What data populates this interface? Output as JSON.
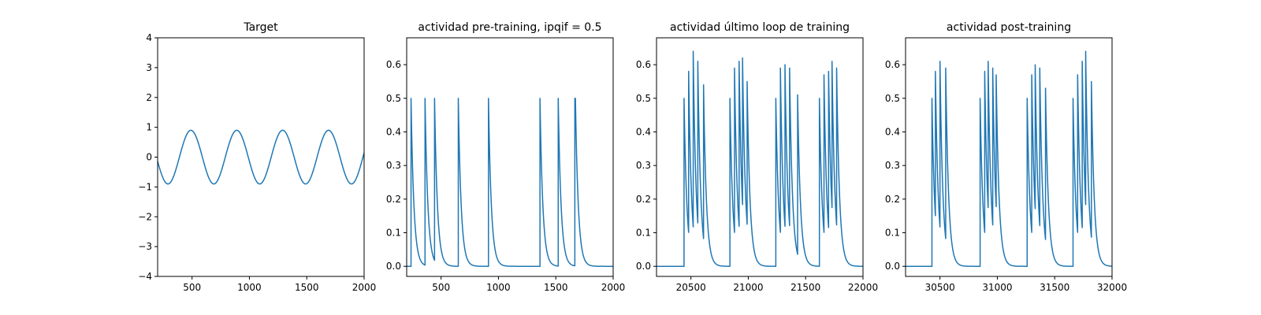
{
  "colors": {
    "series": "#1f77b4",
    "axis": "#000000",
    "background": "#ffffff"
  },
  "chart_data": [
    {
      "type": "line",
      "title": "Target",
      "xlabel": "",
      "ylabel": "",
      "xlim": [
        200,
        2000
      ],
      "ylim": [
        -4,
        4
      ],
      "xticks": [
        500,
        1000,
        1500,
        2000
      ],
      "yticks": [
        -4,
        -3,
        -2,
        -1,
        0,
        1,
        2,
        3,
        4
      ],
      "grid": false,
      "series": [
        {
          "kind": "sine",
          "amplitude": 0.9,
          "period": 400,
          "peaks_at": [
            490,
            890,
            1290,
            1690
          ],
          "troughs_at": [
            290,
            690,
            1090,
            1490,
            1890
          ]
        }
      ]
    },
    {
      "type": "line",
      "title": "actividad pre-training, ipqif = 0.5",
      "xlabel": "",
      "ylabel": "",
      "xlim": [
        200,
        2000
      ],
      "ylim": [
        -0.03,
        0.68
      ],
      "xticks": [
        500,
        1000,
        1500,
        2000
      ],
      "yticks": [
        0.0,
        0.1,
        0.2,
        0.3,
        0.4,
        0.5,
        0.6
      ],
      "grid": false,
      "series": [
        {
          "kind": "spikes",
          "decay": 25,
          "spikes": [
            [
              238,
              0.5
            ],
            [
              360,
              0.5
            ],
            [
              443,
              0.5
            ],
            [
              650,
              0.5
            ],
            [
              913,
              0.5
            ],
            [
              1362,
              0.5
            ],
            [
              1521,
              0.5
            ],
            [
              1666,
              0.5
            ],
            [
              1671,
              0.5
            ]
          ]
        }
      ]
    },
    {
      "type": "line",
      "title": "actividad último loop de training",
      "xlabel": "",
      "ylabel": "",
      "xlim": [
        20200,
        22000
      ],
      "ylim": [
        -0.03,
        0.68
      ],
      "xticks": [
        20500,
        21000,
        21500,
        22000
      ],
      "yticks": [
        0.0,
        0.1,
        0.2,
        0.3,
        0.4,
        0.5,
        0.6
      ],
      "grid": false,
      "series": [
        {
          "kind": "spikes",
          "decay": 25,
          "spikes": [
            [
              20440,
              0.5
            ],
            [
              20480,
              0.58
            ],
            [
              20520,
              0.64
            ],
            [
              20560,
              0.61
            ],
            [
              20610,
              0.54
            ],
            [
              20840,
              0.5
            ],
            [
              20880,
              0.59
            ],
            [
              20920,
              0.61
            ],
            [
              20950,
              0.62
            ],
            [
              20990,
              0.55
            ],
            [
              21240,
              0.5
            ],
            [
              21280,
              0.59
            ],
            [
              21320,
              0.6
            ],
            [
              21360,
              0.59
            ],
            [
              21430,
              0.51
            ],
            [
              21620,
              0.5
            ],
            [
              21660,
              0.57
            ],
            [
              21700,
              0.58
            ],
            [
              21730,
              0.61
            ],
            [
              21770,
              0.59
            ]
          ]
        }
      ]
    },
    {
      "type": "line",
      "title": "actividad post-training",
      "xlabel": "",
      "ylabel": "",
      "xlim": [
        30200,
        32000
      ],
      "ylim": [
        -0.03,
        0.68
      ],
      "xticks": [
        30500,
        31000,
        31500,
        32000
      ],
      "yticks": [
        0.0,
        0.1,
        0.2,
        0.3,
        0.4,
        0.5,
        0.6
      ],
      "grid": false,
      "series": [
        {
          "kind": "spikes",
          "decay": 25,
          "spikes": [
            [
              30430,
              0.5
            ],
            [
              30460,
              0.58
            ],
            [
              30500,
              0.61
            ],
            [
              30550,
              0.59
            ],
            [
              30850,
              0.5
            ],
            [
              30890,
              0.58
            ],
            [
              30920,
              0.61
            ],
            [
              30960,
              0.59
            ],
            [
              30990,
              0.57
            ],
            [
              31260,
              0.5
            ],
            [
              31300,
              0.57
            ],
            [
              31330,
              0.6
            ],
            [
              31370,
              0.59
            ],
            [
              31420,
              0.53
            ],
            [
              31660,
              0.5
            ],
            [
              31700,
              0.57
            ],
            [
              31740,
              0.61
            ],
            [
              31770,
              0.64
            ],
            [
              31820,
              0.55
            ]
          ]
        }
      ]
    }
  ]
}
